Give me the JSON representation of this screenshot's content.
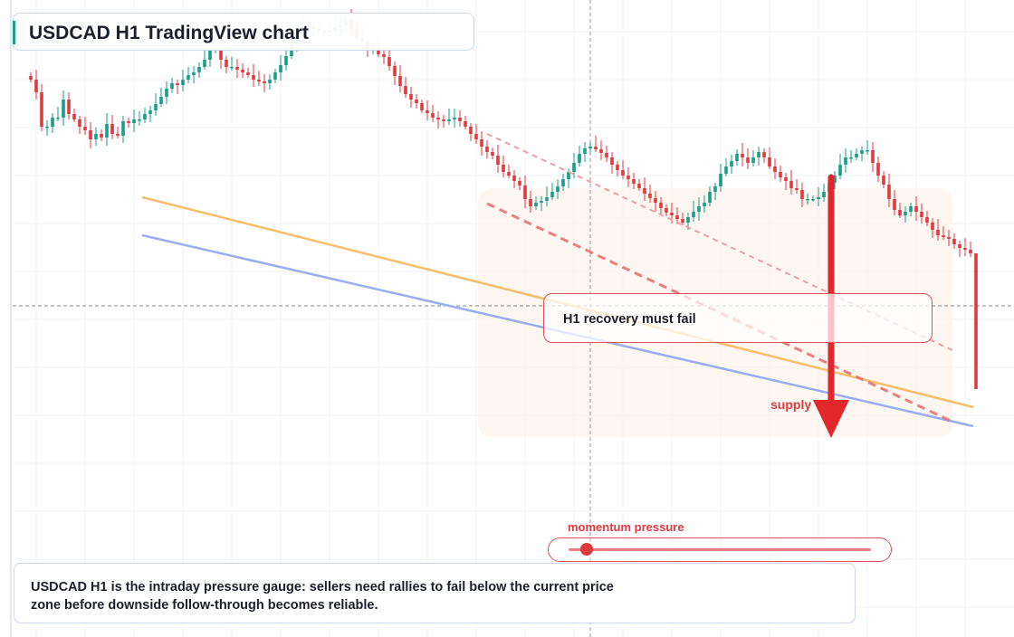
{
  "title": "USDCAD H1 TradingView chart",
  "callout": "H1 recovery must fail",
  "supply_label": "supply",
  "momentum_label": "momentum pressure",
  "momentum_level": 0.06,
  "note": "USDCAD H1 is the intraday pressure gauge: sellers need rallies to fail below the current price zone before downside follow-through becomes reliable.",
  "colors": {
    "bull": "#1a9d8a",
    "bear": "#e0393e",
    "support_line": "#f6bd6a",
    "lower_line": "#96aff0",
    "channel": "#e0393e",
    "arrow": "#e0282c"
  },
  "chart_data": {
    "type": "candlestick",
    "timeframe": "H1",
    "symbol": "USDCAD",
    "closes": [
      612,
      598,
      560,
      560,
      570,
      570,
      590,
      574,
      568,
      560,
      556,
      546,
      552,
      548,
      563,
      552,
      550,
      566,
      564,
      568,
      568,
      574,
      578,
      585,
      593,
      602,
      608,
      606,
      612,
      617,
      620,
      626,
      634,
      646,
      646,
      634,
      626,
      626,
      623,
      620,
      617,
      612,
      610,
      608,
      612,
      620,
      628,
      638,
      651,
      665,
      670,
      670,
      668,
      666,
      666,
      666,
      670,
      672,
      678,
      668,
      658,
      655,
      646,
      646,
      640,
      637,
      627,
      616,
      605,
      596,
      590,
      586,
      578,
      575,
      570,
      568,
      566,
      568,
      570,
      566,
      560,
      552,
      546,
      538,
      532,
      528,
      518,
      510,
      506,
      500,
      495,
      480,
      472,
      476,
      478,
      482,
      488,
      494,
      502,
      510,
      520,
      530,
      536,
      538,
      535,
      531,
      526,
      518,
      512,
      506,
      502,
      497,
      492,
      486,
      481,
      476,
      470,
      465,
      462,
      458,
      454,
      460,
      466,
      472,
      476,
      488,
      494,
      508,
      516,
      522,
      530,
      526,
      520,
      526,
      532,
      526,
      516,
      510,
      504,
      500,
      492,
      490,
      480,
      480,
      480,
      482,
      488,
      498,
      506,
      518,
      526,
      526,
      530,
      534,
      534,
      520,
      506,
      496,
      480,
      468,
      462,
      466,
      472,
      466,
      460,
      454,
      446,
      440,
      438,
      436,
      430,
      426,
      424,
      420
    ],
    "upper_line_label": "",
    "lower_line_label": ""
  }
}
